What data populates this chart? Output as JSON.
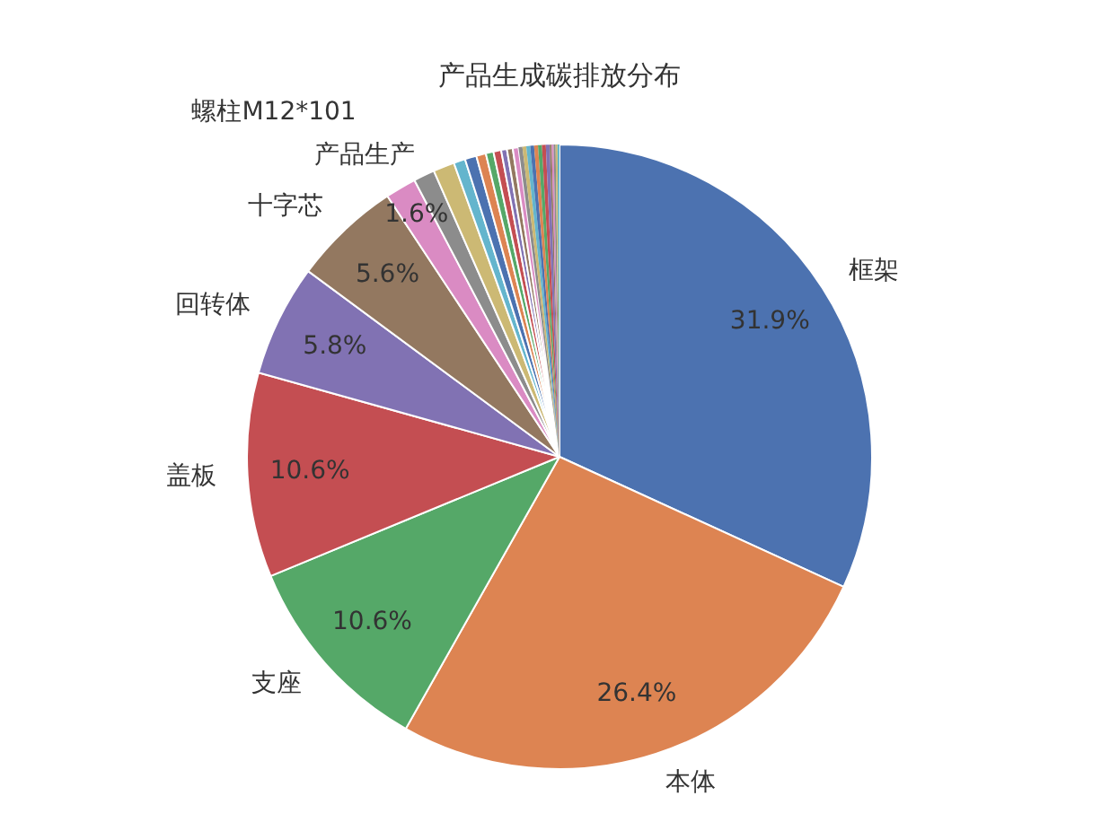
{
  "chart_data": {
    "type": "pie",
    "title": "产品生成碳排放分布",
    "categories": [
      "框架",
      "本体",
      "支座",
      "盖板",
      "回转体",
      "十字芯",
      "螺柱M12*101",
      "产品生产",
      null,
      null,
      null,
      null,
      null,
      null,
      null,
      null,
      null,
      null,
      null,
      null,
      null,
      null,
      null,
      null,
      null,
      null,
      null,
      null,
      null,
      null
    ],
    "values": [
      31.9,
      26.4,
      10.6,
      10.6,
      5.8,
      5.6,
      1.6,
      1.1,
      1.1,
      0.6,
      0.6,
      0.5,
      0.4,
      0.4,
      0.3,
      0.3,
      0.3,
      0.2,
      0.2,
      0.2,
      0.2,
      0.2,
      0.2,
      0.2,
      0.2,
      0.1,
      0.1,
      0.1,
      0.1,
      0.1
    ],
    "value_labels": [
      "31.9%",
      "26.4%",
      "10.6%",
      "10.6%",
      "5.8%",
      "5.6%",
      "1.6%",
      null,
      null,
      null,
      null,
      null,
      null,
      null,
      null,
      null,
      null,
      null,
      null,
      null,
      null,
      null,
      null,
      null,
      null,
      null,
      null,
      null,
      null,
      null
    ],
    "colors": [
      "#4c72b0",
      "#dd8452",
      "#55a868",
      "#c44e52",
      "#8172b3",
      "#937860",
      "#da8bc3",
      "#8c8c8c",
      "#ccb974",
      "#64b5cd",
      "#4c72b0",
      "#dd8452",
      "#55a868",
      "#c44e52",
      "#8172b3",
      "#937860",
      "#da8bc3",
      "#8c8c8c",
      "#ccb974",
      "#64b5cd",
      "#4c72b0",
      "#dd8452",
      "#55a868",
      "#c44e52",
      "#8172b3",
      "#937860",
      "#da8bc3",
      "#8c8c8c",
      "#ccb974",
      "#64b5cd"
    ]
  }
}
